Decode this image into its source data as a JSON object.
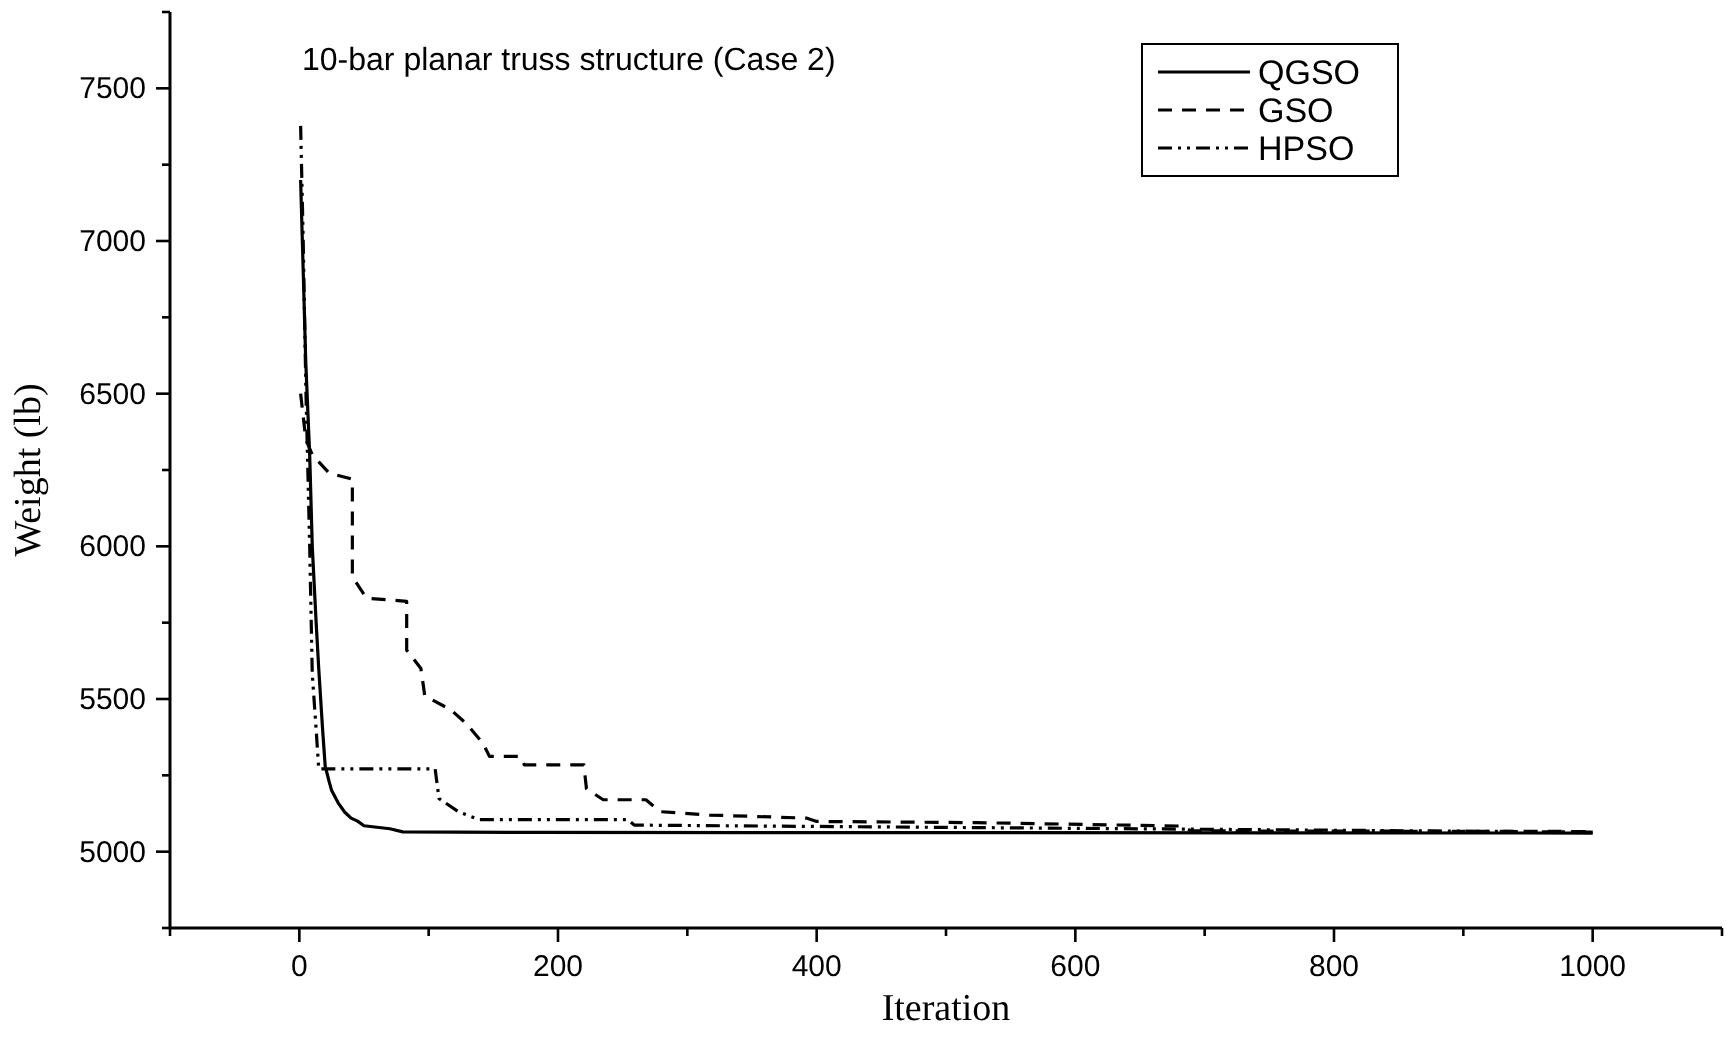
{
  "chart_data": {
    "type": "line",
    "title": "10-bar planar truss structure (Case 2)",
    "xlabel": "Iteration",
    "ylabel": "Weight (lb)",
    "xlim": [
      -100,
      1100
    ],
    "xticks": [
      {
        "value": -100,
        "label": null
      },
      0,
      {
        "value": 100,
        "label": null
      },
      200,
      {
        "value": 300,
        "label": null
      },
      400,
      {
        "value": 500,
        "label": null
      },
      600,
      {
        "value": 700,
        "label": null
      },
      800,
      {
        "value": 900,
        "label": null
      },
      1000,
      {
        "value": 1100,
        "label": null
      }
    ],
    "ylim": [
      4750,
      7750
    ],
    "yticks": [
      {
        "value": 4750,
        "label": null
      },
      5000,
      {
        "value": 5250,
        "label": null
      },
      5500,
      {
        "value": 5750,
        "label": null
      },
      6000,
      {
        "value": 6250,
        "label": null
      },
      6500,
      {
        "value": 6750,
        "label": null
      },
      7000,
      {
        "value": 7250,
        "label": null
      },
      7500,
      {
        "value": 7750,
        "label": null
      }
    ],
    "grid": false,
    "legend": "top right",
    "series": [
      {
        "name": "QGSO",
        "color": "#000000",
        "line_style": "solid",
        "x": [
          1,
          3,
          5,
          8,
          10,
          13,
          15,
          18,
          20,
          23,
          25,
          30,
          35,
          40,
          45,
          50,
          60,
          70,
          80,
          180,
          1000
        ],
        "values": [
          7200,
          6900,
          6600,
          6300,
          6000,
          5750,
          5600,
          5400,
          5280,
          5230,
          5200,
          5160,
          5130,
          5110,
          5100,
          5085,
          5080,
          5075,
          5065,
          5063,
          5061
        ]
      },
      {
        "name": "GSO",
        "color": "#000000",
        "line_style": "dashed",
        "x": [
          1,
          5,
          10,
          23,
          41,
          41,
          52,
          83,
          83,
          94,
          97,
          117,
          129,
          142,
          147,
          171,
          174,
          220,
          222,
          235,
          268,
          279,
          317,
          392,
          400,
          524,
          680,
          690,
          1000
        ],
        "values": [
          6500,
          6350,
          6300,
          6240,
          6220,
          5900,
          5830,
          5820,
          5660,
          5600,
          5510,
          5465,
          5420,
          5355,
          5312,
          5312,
          5284,
          5284,
          5206,
          5170,
          5170,
          5131,
          5120,
          5110,
          5099,
          5095,
          5084,
          5068,
          5066
        ]
      },
      {
        "name": "HPSO",
        "color": "#000000",
        "line_style": "dotted",
        "x": [
          1,
          3,
          5,
          8,
          10,
          13,
          15,
          105,
          108,
          123,
          139,
          254,
          259,
          1000
        ],
        "values": [
          7377,
          7000,
          6525,
          6000,
          5582,
          5400,
          5271,
          5271,
          5174,
          5131,
          5105,
          5105,
          5087,
          5064
        ]
      }
    ]
  }
}
